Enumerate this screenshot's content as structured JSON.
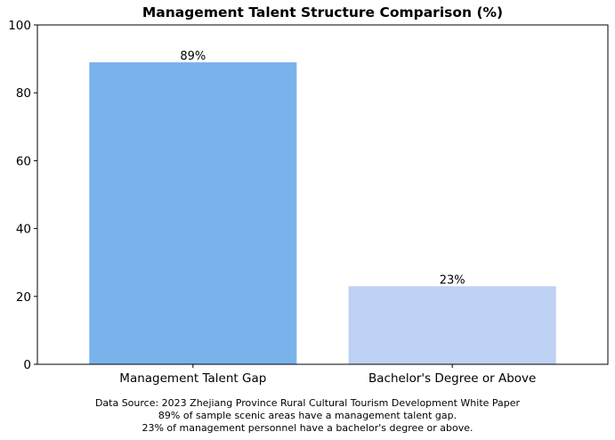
{
  "chart_data": {
    "type": "bar",
    "title": "Management Talent Structure Comparison (%)",
    "categories": [
      "Management Talent Gap",
      "Bachelor's Degree or Above"
    ],
    "values": [
      89,
      23
    ],
    "value_labels": [
      "89%",
      "23%"
    ],
    "colors": [
      "#7ab3ec",
      "#bdd2f4"
    ],
    "ylim": [
      0,
      100
    ],
    "yticks": [
      0,
      20,
      40,
      60,
      80,
      100
    ],
    "xlabel": "",
    "ylabel": "",
    "grid": false
  },
  "caption": {
    "source": "Data Source: 2023 Zhejiang Province Rural Cultural Tourism Development White Paper",
    "line1": "89% of sample scenic areas have a management talent gap.",
    "line2": "23% of management personnel have a bachelor's degree or above."
  }
}
